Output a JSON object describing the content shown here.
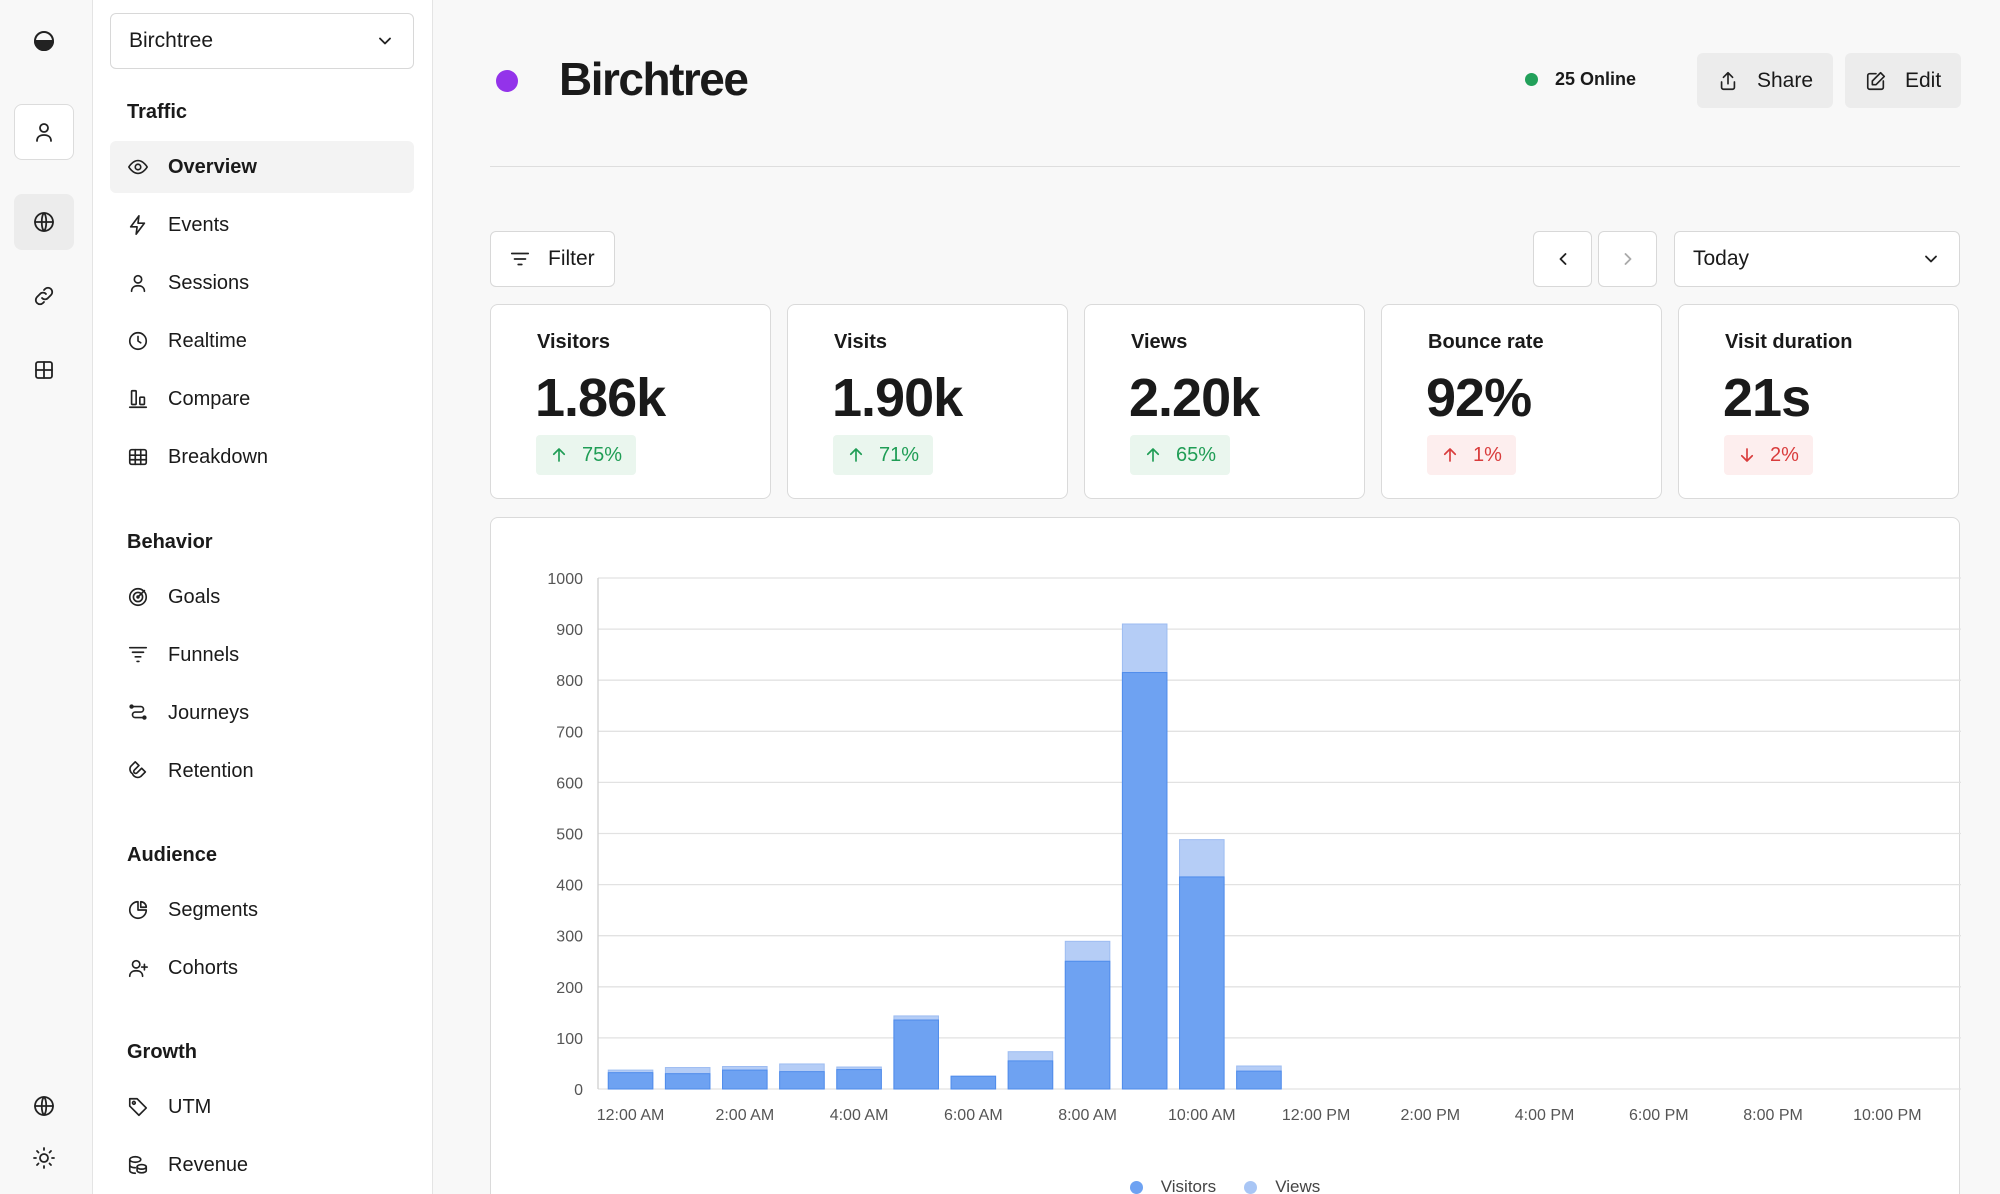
{
  "site": {
    "name": "Birchtree",
    "dot_color": "#9333ea"
  },
  "header": {
    "title": "Birchtree",
    "online": "25 Online",
    "share_label": "Share",
    "edit_label": "Edit"
  },
  "toolbar": {
    "filter_label": "Filter",
    "date_range": "Today"
  },
  "rail": {
    "top": [
      "logo-icon",
      "user-icon",
      "globe-icon",
      "link-icon",
      "grid-icon"
    ],
    "bottom": [
      "globe-icon",
      "sun-icon"
    ]
  },
  "sidebar": {
    "sections": [
      {
        "heading": "Traffic",
        "items": [
          {
            "label": "Overview",
            "icon": "eye-icon",
            "active": true
          },
          {
            "label": "Events",
            "icon": "lightning-icon"
          },
          {
            "label": "Sessions",
            "icon": "user-icon"
          },
          {
            "label": "Realtime",
            "icon": "clock-icon"
          },
          {
            "label": "Compare",
            "icon": "compare-icon"
          },
          {
            "label": "Breakdown",
            "icon": "table-icon"
          }
        ]
      },
      {
        "heading": "Behavior",
        "items": [
          {
            "label": "Goals",
            "icon": "target-icon"
          },
          {
            "label": "Funnels",
            "icon": "funnel-icon"
          },
          {
            "label": "Journeys",
            "icon": "journey-icon"
          },
          {
            "label": "Retention",
            "icon": "magnet-icon"
          }
        ]
      },
      {
        "heading": "Audience",
        "items": [
          {
            "label": "Segments",
            "icon": "pie-icon"
          },
          {
            "label": "Cohorts",
            "icon": "user-plus-icon"
          }
        ]
      },
      {
        "heading": "Growth",
        "items": [
          {
            "label": "UTM",
            "icon": "tag-icon"
          },
          {
            "label": "Revenue",
            "icon": "coins-icon"
          }
        ]
      }
    ]
  },
  "metrics": [
    {
      "label": "Visitors",
      "value": "1.86k",
      "change": "75%",
      "direction": "up"
    },
    {
      "label": "Visits",
      "value": "1.90k",
      "change": "71%",
      "direction": "up"
    },
    {
      "label": "Views",
      "value": "2.20k",
      "change": "65%",
      "direction": "up"
    },
    {
      "label": "Bounce rate",
      "value": "92%",
      "change": "1%",
      "direction": "up-bad"
    },
    {
      "label": "Visit duration",
      "value": "21s",
      "change": "2%",
      "direction": "down"
    }
  ],
  "colors": {
    "visitors": "#6ea2f2",
    "views": "#b5cdf6",
    "up": "#1f9d55",
    "down": "#d93c3c"
  },
  "chart_data": {
    "type": "bar",
    "stacked": "overlay",
    "categories": [
      "12:00 AM",
      "1:00 AM",
      "2:00 AM",
      "3:00 AM",
      "4:00 AM",
      "5:00 AM",
      "6:00 AM",
      "7:00 AM",
      "8:00 AM",
      "9:00 AM",
      "10:00 AM",
      "11:00 AM",
      "12:00 PM",
      "1:00 PM",
      "2:00 PM",
      "3:00 PM",
      "4:00 PM",
      "5:00 PM",
      "6:00 PM",
      "7:00 PM",
      "8:00 PM",
      "9:00 PM",
      "10:00 PM",
      "11:00 PM"
    ],
    "x_tick_labels": [
      "12:00 AM",
      "2:00 AM",
      "4:00 AM",
      "6:00 AM",
      "8:00 AM",
      "10:00 AM",
      "12:00 PM",
      "2:00 PM",
      "4:00 PM",
      "6:00 PM",
      "8:00 PM",
      "10:00 PM"
    ],
    "series": [
      {
        "name": "Visitors",
        "values": [
          32,
          30,
          37,
          34,
          38,
          135,
          25,
          55,
          250,
          815,
          415,
          35,
          0,
          0,
          0,
          0,
          0,
          0,
          0,
          0,
          0,
          0,
          0,
          0
        ]
      },
      {
        "name": "Views",
        "values": [
          37,
          42,
          44,
          49,
          43,
          143,
          25,
          73,
          289,
          910,
          488,
          45,
          0,
          0,
          0,
          0,
          0,
          0,
          0,
          0,
          0,
          0,
          0,
          0
        ]
      }
    ],
    "y_ticks": [
      0,
      100,
      200,
      300,
      400,
      500,
      600,
      700,
      800,
      900,
      1000
    ],
    "ylim": [
      0,
      1000
    ],
    "grid": true,
    "legend_position": "bottom"
  }
}
